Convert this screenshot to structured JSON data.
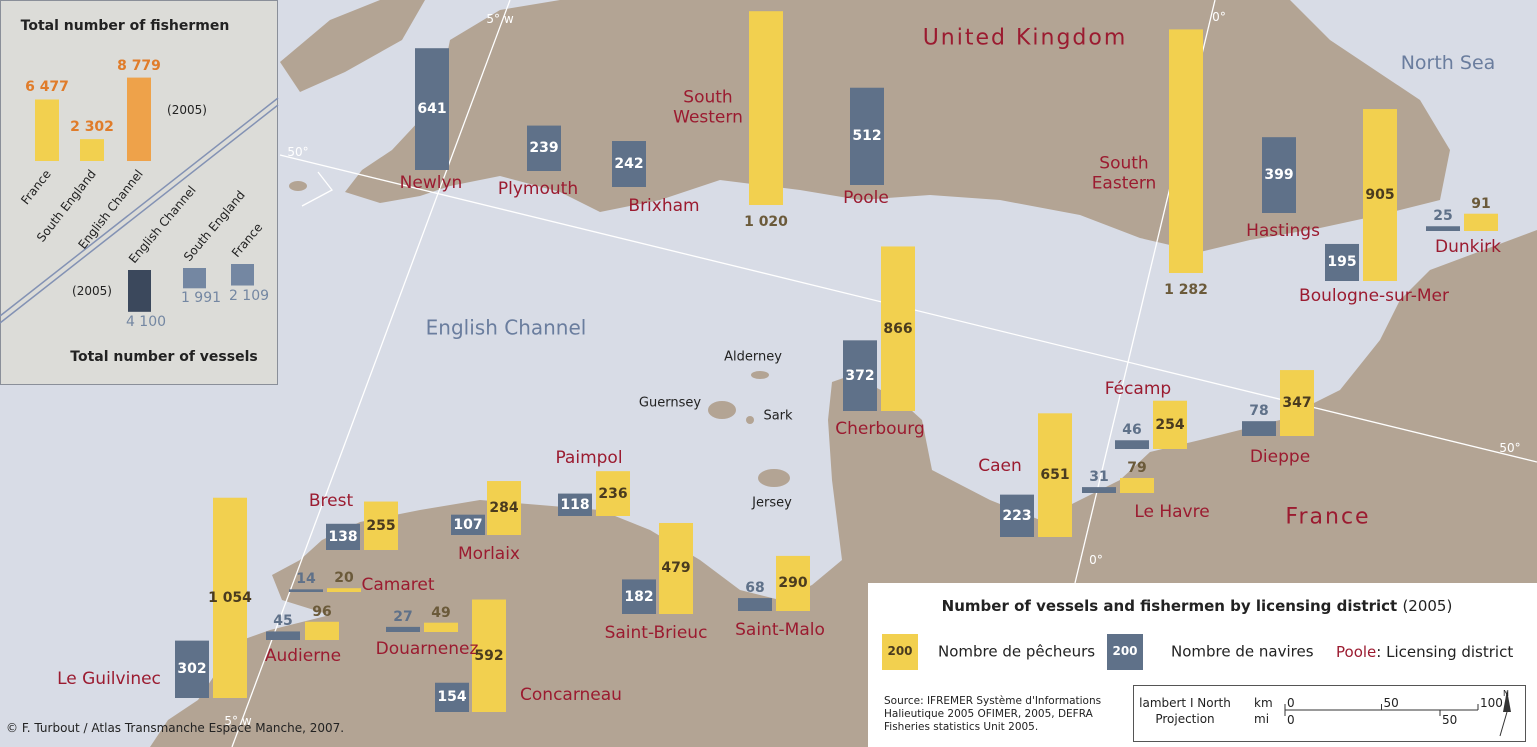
{
  "map_labels": {
    "countries": [
      "United Kingdom",
      "France"
    ],
    "seas": [
      "North Sea",
      "English Channel"
    ],
    "islands": [
      "Alderney",
      "Guernsey",
      "Sark",
      "Jersey"
    ],
    "graticule": [
      "5° w",
      "5° w",
      "0°",
      "0°",
      "50°",
      "50°"
    ]
  },
  "districts": {
    "categories": [
      "Newlyn",
      "Plymouth",
      "Brixham",
      "South Western",
      "Poole",
      "South Eastern",
      "Hastings",
      "Boulogne-sur-Mer",
      "Dunkirk",
      "Cherbourg",
      "Caen",
      "Le Havre",
      "Fécamp",
      "Dieppe",
      "Paimpol",
      "Morlaix",
      "Brest",
      "Camaret",
      "Audierne",
      "Douarnenez",
      "Le Guilvinec",
      "Concarneau",
      "Saint-Brieuc",
      "Saint-Malo"
    ],
    "series": [
      {
        "name": "Nombre de pêcheurs",
        "color": "#f2d04f",
        "values": [
          null,
          null,
          null,
          1020,
          null,
          1282,
          null,
          905,
          91,
          866,
          651,
          79,
          254,
          347,
          236,
          284,
          255,
          20,
          96,
          49,
          1054,
          592,
          479,
          290
        ],
        "value_labels": [
          null,
          null,
          null,
          "1 020",
          null,
          "1 282",
          null,
          "905",
          "91",
          "866",
          "651",
          "79",
          "254",
          "347",
          "236",
          "284",
          "255",
          "20",
          "96",
          "49",
          "1 054",
          "592",
          "479",
          "290"
        ]
      },
      {
        "name": "Nombre de navires",
        "color": "#5f7189",
        "values": [
          641,
          239,
          242,
          null,
          512,
          null,
          399,
          195,
          25,
          372,
          223,
          31,
          46,
          78,
          118,
          107,
          138,
          14,
          45,
          27,
          302,
          154,
          182,
          68
        ]
      }
    ]
  },
  "inset": {
    "fishermen_title": "Total number of fishermen",
    "vessels_title": "Total number of vessels",
    "year": "(2005)",
    "fishermen": {
      "categories": [
        "France",
        "South England",
        "English Channel"
      ],
      "values": [
        6477,
        2302,
        8779
      ],
      "value_labels": [
        "6 477",
        "2 302",
        "8 779"
      ],
      "colors": [
        "#f2d04f",
        "#f2d04f",
        "#eea24a"
      ]
    },
    "vessels": {
      "categories": [
        "English Channel",
        "South England",
        "France"
      ],
      "values": [
        4100,
        1991,
        2109
      ],
      "value_labels": [
        "4 100",
        "1 991",
        "2 109"
      ],
      "colors": [
        "#3b485c",
        "#7487a2",
        "#7487a2"
      ]
    }
  },
  "legend": {
    "title": "Number of vessels and fishermen by licensing district",
    "year": "(2005)",
    "samples": [
      200,
      200
    ],
    "district_example": "Poole",
    "district_label": ": Licensing district"
  },
  "source": [
    "Source: IFREMER Système d'Informations",
    "Halieutique 2005 OFIMER, 2005, DEFRA",
    "Fisheries statistics Unit 2005."
  ],
  "scale": {
    "projection": [
      "lambert I North",
      "Projection"
    ],
    "km": {
      "unit": "km",
      "ticks": [
        0,
        50,
        100
      ]
    },
    "mi": {
      "unit": "mi",
      "ticks": [
        0,
        50
      ]
    },
    "north": "N"
  },
  "credit": "© F. Turbout / Atlas Transmanche Espace Manche, 2007."
}
